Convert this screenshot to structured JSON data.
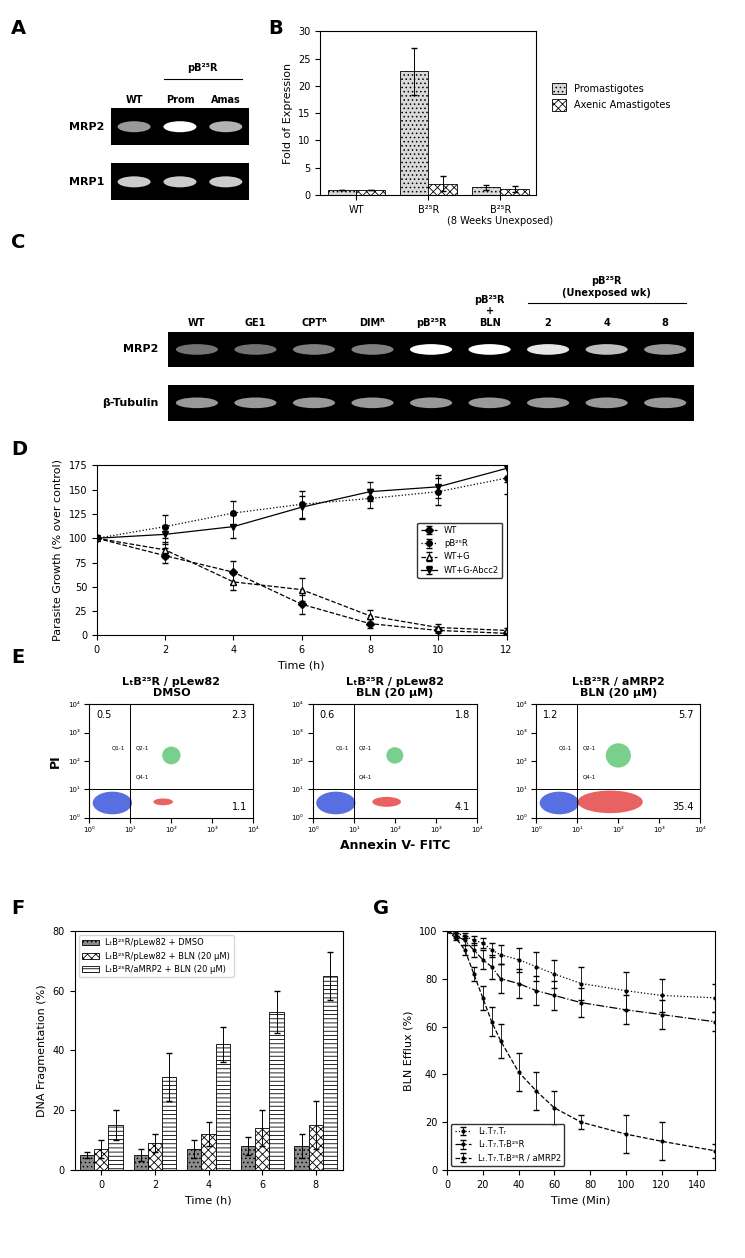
{
  "chart_data": [
    {
      "type": "gel",
      "panel": "A",
      "lanes": [
        "WT",
        "Prom",
        "Amas"
      ],
      "lane_groups": [
        {
          "label": "pB²⁵R",
          "lanes": [
            1,
            2
          ]
        }
      ],
      "rows": [
        {
          "name": "MRP2",
          "values": [
            0.6,
            1.0,
            0.7
          ]
        },
        {
          "name": "MRP1",
          "values": [
            0.8,
            0.8,
            0.8
          ]
        }
      ]
    },
    {
      "type": "bar",
      "panel": "B",
      "categories": [
        "WT",
        "B²⁵R",
        "B²⁵R\n(8 Weeks Unexposed)"
      ],
      "ylabel": "Fold of Expression",
      "ylim": [
        0,
        30
      ],
      "yticks": [
        0,
        5,
        10,
        15,
        20,
        25,
        30
      ],
      "legend": "right",
      "series": [
        {
          "name": "Promastigotes",
          "color": "#d9d9d9",
          "values": [
            1,
            22.7,
            1.4
          ],
          "errors": [
            0,
            4.3,
            0.5
          ]
        },
        {
          "name": "Axenic Amastigotes",
          "color": "#ffffff",
          "values": [
            1,
            2.1,
            1.1
          ],
          "errors": [
            0,
            1.3,
            0.6
          ]
        }
      ]
    },
    {
      "type": "gel",
      "panel": "C",
      "lanes": [
        "WT",
        "GE1",
        "CPTᴿ",
        "DIMᴿ",
        "pB²⁵R",
        "pB²⁵R\n+\nBLN",
        "2",
        "4",
        "8"
      ],
      "lane_groups": [
        {
          "label": "pB²⁵R\n(Unexposed wk)",
          "lanes": [
            6,
            8
          ]
        }
      ],
      "rows": [
        {
          "name": "MRP2",
          "values": [
            0.45,
            0.45,
            0.5,
            0.5,
            1.0,
            1.0,
            0.9,
            0.75,
            0.6
          ]
        },
        {
          "name": "β-Tubulin",
          "values": [
            0.6,
            0.6,
            0.6,
            0.6,
            0.6,
            0.6,
            0.6,
            0.6,
            0.6
          ]
        }
      ]
    },
    {
      "type": "line",
      "panel": "D",
      "x": [
        0,
        2,
        4,
        6,
        8,
        10,
        12
      ],
      "xlabel": "Time (h)",
      "ylabel": "Parasite Growth (% over control)",
      "xlim": [
        0,
        12
      ],
      "xticks": [
        0,
        2,
        4,
        6,
        8,
        10,
        12
      ],
      "ylim": [
        0,
        175
      ],
      "yticks": [
        0,
        25,
        50,
        75,
        100,
        125,
        150,
        175
      ],
      "legend": "center right",
      "series": [
        {
          "name": "WT",
          "color": "#000000",
          "marker": "diamond",
          "line_style": "dashed",
          "values": [
            100,
            82,
            65,
            32,
            12,
            5,
            2
          ],
          "errors": [
            0,
            8,
            12,
            10,
            5,
            3,
            2
          ]
        },
        {
          "name": "pB²⁵R",
          "color": "#000000",
          "marker": "circle",
          "line_style": "dotted",
          "values": [
            100,
            112,
            126,
            135,
            141,
            148,
            162
          ],
          "errors": [
            0,
            12,
            12,
            14,
            10,
            14,
            16
          ]
        },
        {
          "name": "WT+G",
          "color": "#000000",
          "marker": "open_triangle",
          "line_style": "dashed",
          "values": [
            100,
            88,
            55,
            47,
            20,
            8,
            5
          ],
          "errors": [
            0,
            8,
            8,
            12,
            6,
            4,
            2
          ]
        },
        {
          "name": "WT+G-Abcc2",
          "color": "#000000",
          "marker": "triangle_down",
          "line_style": "solid",
          "values": [
            100,
            104,
            112,
            132,
            148,
            153,
            172
          ],
          "errors": [
            0,
            10,
            12,
            12,
            10,
            12,
            14
          ]
        }
      ]
    },
    {
      "type": "flow_cytometry",
      "panel": "E",
      "xlabel": "Annexin V- FITC",
      "ylabel": "PI",
      "log": true,
      "xlim": [
        1,
        10000
      ],
      "ylim": [
        1,
        10000
      ],
      "xticks": [
        {
          "value": 1,
          "label": "10⁰"
        },
        {
          "value": 10,
          "label": "10¹"
        },
        {
          "value": 100,
          "label": "10²"
        },
        {
          "value": 1000,
          "label": "10³"
        },
        {
          "value": 10000,
          "label": "10⁴"
        }
      ],
      "yticks": [
        {
          "value": 1,
          "label": "10⁰"
        },
        {
          "value": 10,
          "label": "10¹"
        },
        {
          "value": 100,
          "label": "10²"
        },
        {
          "value": 1000,
          "label": "10³"
        },
        {
          "value": 10000,
          "label": "10⁴"
        }
      ],
      "gate": {
        "x": 10,
        "y": 10
      },
      "quadrant_names": {
        "Q1": "Q1-1",
        "Q2": "Q2-1",
        "Q4": "Q4-1"
      },
      "plots": [
        {
          "title": "LₜB²⁵R / pLew82\nDMSO",
          "quadrant_percent": {
            "Q1": 0.5,
            "Q2": 2.3,
            "Q4": 1.1
          }
        },
        {
          "title": "LₜB²⁵R / pLew82\nBLN (20 μM)",
          "quadrant_percent": {
            "Q1": 0.6,
            "Q2": 1.8,
            "Q4": 4.1
          }
        },
        {
          "title": "LₜB²⁵R / aMRP2\nBLN (20 μM)",
          "quadrant_percent": {
            "Q1": 1.2,
            "Q2": 5.7,
            "Q4": 35.4
          }
        }
      ]
    },
    {
      "type": "bar",
      "panel": "F",
      "categories": [
        "0",
        "2",
        "4",
        "6",
        "8"
      ],
      "xlabel": "Time (h)",
      "ylabel": "DNA Fragmentation (%)",
      "ylim": [
        0,
        80
      ],
      "yticks": [
        0,
        20,
        40,
        60,
        80
      ],
      "legend": "upper left",
      "series": [
        {
          "name": "LₜB²⁵R/pLew82 + DMSO",
          "color": "#8c8c8c",
          "values": [
            5,
            5,
            7,
            8,
            8
          ],
          "errors": [
            1,
            2,
            3,
            3,
            4
          ]
        },
        {
          "name": "LₜB²⁵R/pLew82 + BLN (20 μM)",
          "color": "#ffffff",
          "values": [
            7,
            9,
            12,
            14,
            15
          ],
          "errors": [
            3,
            3,
            4,
            6,
            8
          ]
        },
        {
          "name": "LₜB²⁵R/aMRP2 + BLN (20 μM)",
          "color": "#ffffff",
          "values": [
            15,
            31,
            42,
            53,
            65
          ],
          "errors": [
            5,
            8,
            6,
            7,
            8
          ]
        }
      ]
    },
    {
      "type": "line",
      "panel": "G",
      "x": [
        0,
        5,
        10,
        15,
        20,
        25,
        30,
        40,
        50,
        60,
        75,
        100,
        120,
        150
      ],
      "xlabel": "Time (Min)",
      "ylabel": "BLN Efflux (%)",
      "xlim": [
        0,
        150
      ],
      "xticks": [
        0,
        20,
        40,
        60,
        80,
        100,
        120,
        140
      ],
      "ylim": [
        0,
        100
      ],
      "yticks": [
        0,
        20,
        40,
        60,
        80,
        100
      ],
      "legend": "lower left",
      "series": [
        {
          "name": "Lₜ.T₇.Tᵣ",
          "color": "#000000",
          "marker": "point",
          "line_style": "dotted",
          "values": [
            100,
            99,
            98,
            96,
            95,
            92,
            90,
            88,
            85,
            82,
            78,
            75,
            73,
            72
          ],
          "errors": [
            0,
            1,
            1,
            2,
            2,
            3,
            4,
            5,
            6,
            6,
            7,
            8,
            7,
            6
          ]
        },
        {
          "name": "Lₜ.T₇.TᵣB²⁵R",
          "color": "#000000",
          "marker": "point",
          "line_style": "dashdot",
          "values": [
            100,
            98,
            96,
            92,
            88,
            85,
            80,
            78,
            75,
            73,
            70,
            67,
            65,
            62
          ],
          "errors": [
            0,
            1,
            2,
            3,
            4,
            5,
            6,
            6,
            6,
            6,
            6,
            6,
            6,
            4
          ]
        },
        {
          "name": "Lₜ.T₇.TᵣB²⁵R / aMRP2",
          "color": "#000000",
          "marker": "point",
          "line_style": "dashed",
          "values": [
            100,
            97,
            92,
            82,
            72,
            62,
            54,
            41,
            33,
            26,
            20,
            15,
            12,
            8
          ],
          "errors": [
            0,
            1,
            2,
            3,
            5,
            6,
            7,
            8,
            8,
            7,
            3,
            8,
            8,
            3
          ]
        }
      ]
    }
  ]
}
